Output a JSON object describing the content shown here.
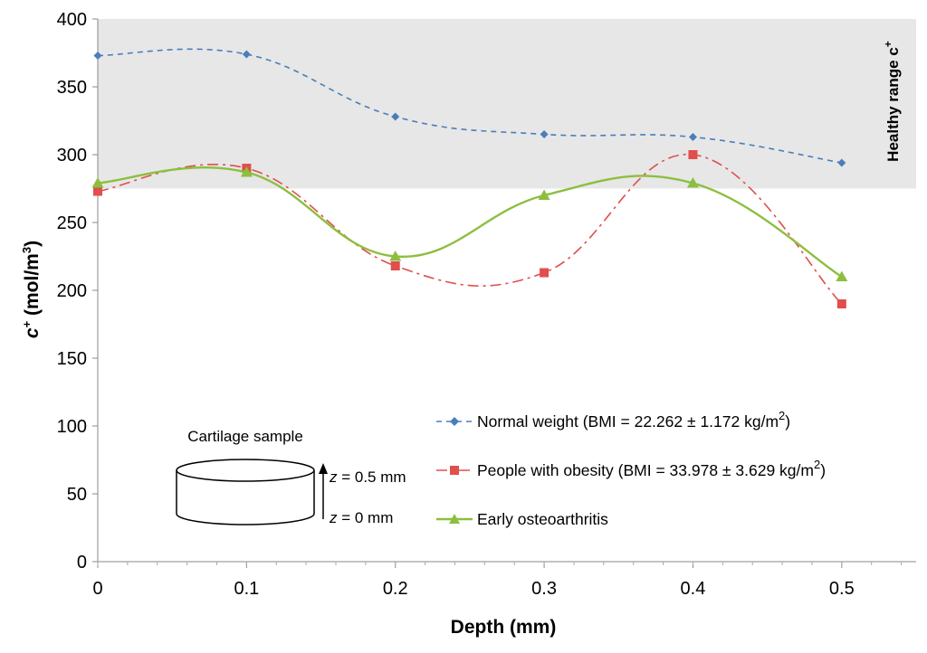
{
  "chart_data": {
    "type": "line",
    "xlabel": "Depth (mm)",
    "ylabel": "c+ (mol/m3)",
    "ylabel_parts": {
      "main": "c",
      "sup1": "+",
      "mid": " (mol/m",
      "sup2": "3",
      "end": ")"
    },
    "xlim": [
      0,
      0.55
    ],
    "ylim": [
      0,
      400
    ],
    "x_ticks": [
      0,
      0.1,
      0.2,
      0.3,
      0.4,
      0.5
    ],
    "x_tick_labels": [
      "0",
      "0.1",
      "0.2",
      "0.3",
      "0.4",
      "0.5"
    ],
    "y_ticks": [
      0,
      50,
      100,
      150,
      200,
      250,
      300,
      350,
      400
    ],
    "y_tick_labels": [
      "0",
      "50",
      "100",
      "150",
      "200",
      "250",
      "300",
      "350",
      "400"
    ],
    "shaded_band": {
      "y_from": 275,
      "y_to": 400,
      "color": "#e7e7e7",
      "label_text": "Healthy range c",
      "label_sup": "+"
    },
    "series": [
      {
        "name": "Normal weight (BMI = 22.262 ± 1.172 kg/m2)",
        "legend_text": "Normal weight (BMI = 22.262 ± 1.172 kg/m",
        "legend_sup": "2",
        "legend_end": ")",
        "x": [
          0,
          0.1,
          0.2,
          0.3,
          0.4,
          0.5
        ],
        "y": [
          373,
          374,
          328,
          315,
          313,
          294
        ],
        "color": "#4a7ebb",
        "marker": "diamond",
        "dash": "6,5"
      },
      {
        "name": "People with obesity (BMI = 33.978 ± 3.629 kg/m2)",
        "legend_text": "People with obesity (BMI = 33.978 ± 3.629 kg/m",
        "legend_sup": "2",
        "legend_end": ")",
        "x": [
          0,
          0.1,
          0.2,
          0.3,
          0.4,
          0.5
        ],
        "y": [
          273,
          290,
          218,
          213,
          300,
          190
        ],
        "color": "#e04e4e",
        "marker": "square",
        "dash": "12,5,3,5"
      },
      {
        "name": "Early osteoarthritis",
        "legend_text": "Early osteoarthritis",
        "legend_sup": "",
        "legend_end": "",
        "x": [
          0,
          0.1,
          0.2,
          0.3,
          0.4,
          0.5
        ],
        "y": [
          279,
          287,
          225,
          270,
          279,
          210
        ],
        "color": "#8cbf3f",
        "marker": "triangle",
        "dash": ""
      }
    ],
    "annotation": {
      "title": "Cartilage sample",
      "top_label_var": "z",
      "top_label_rest": " = 0.5 mm",
      "bottom_label_var": "z",
      "bottom_label_rest": " = 0 mm"
    }
  }
}
